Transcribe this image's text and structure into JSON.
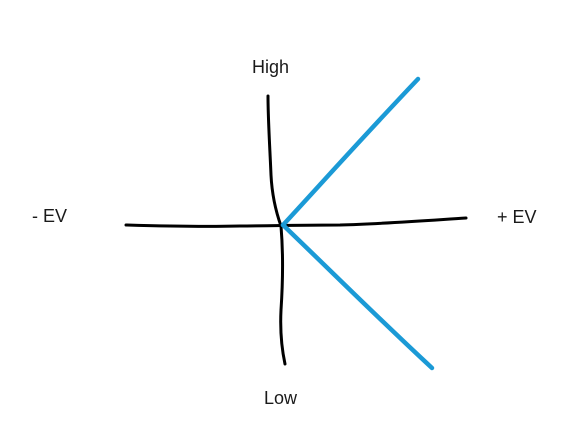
{
  "labels": {
    "top": "High",
    "bottom": "Low",
    "left": "- EV",
    "right": "+ EV"
  },
  "colors": {
    "axes": "#000000",
    "rays": "#1b9ad6",
    "background": "#ffffff"
  }
}
